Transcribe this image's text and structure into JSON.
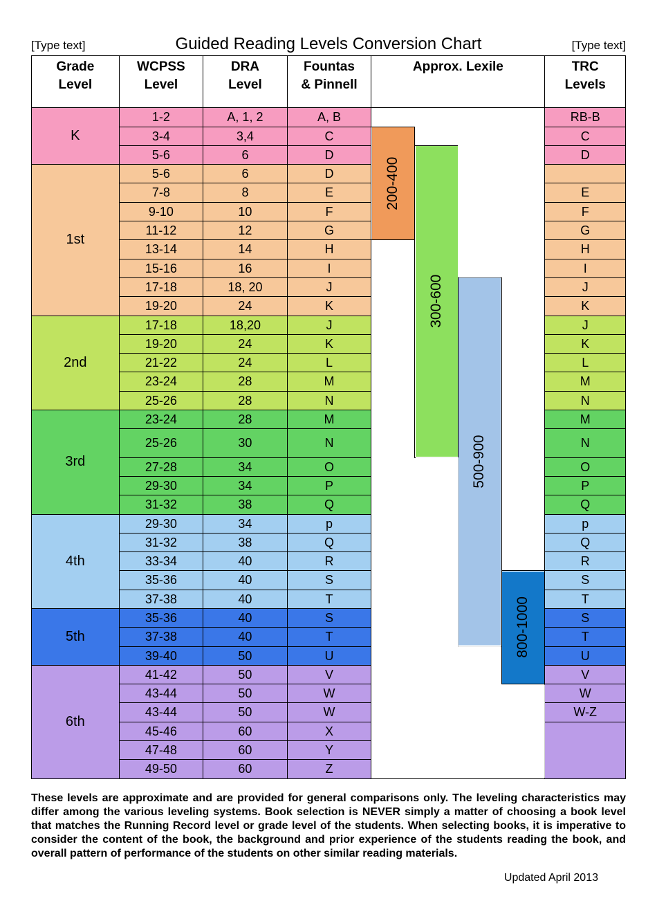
{
  "header": {
    "left": "[Type text]",
    "title": "Guided Reading Levels Conversion Chart",
    "right": "[Type text]"
  },
  "columns": [
    "Grade Level",
    "WCPSS Level",
    "DRA Level",
    "Fountas & Pinnell",
    "Approx. Lexile",
    "TRC Levels"
  ],
  "colors": {
    "k": "#f79cc0",
    "g1": "#f7c89a",
    "g2": "#c0e360",
    "g3": "#63d363",
    "g4": "#a3cff1",
    "g5": "#3a77e8",
    "g6": "#bb9ce8",
    "lex1": "#f09a5a",
    "lex2": "#8de05e",
    "lex3": "#a3c4e8",
    "lex4": "#1378c9",
    "white": "#ffffff"
  },
  "lexile": {
    "l1": "200-400",
    "l2": "300-600",
    "l3": "500-900",
    "l4": "800-1000"
  },
  "grades": {
    "k": "K",
    "g1": "1st",
    "g2": "2nd",
    "g3": "3rd",
    "g4": "4th",
    "g5": "5th",
    "g6": "6th"
  },
  "rows": [
    {
      "g": "k",
      "w": "1-2",
      "d": "A, 1, 2",
      "f": "A, B",
      "t": "RB-B"
    },
    {
      "g": "k",
      "w": "3-4",
      "d": "3,4",
      "f": "C",
      "t": "C"
    },
    {
      "g": "k",
      "w": "5-6",
      "d": "6",
      "f": "D",
      "t": "D"
    },
    {
      "g": "g1",
      "w": "5-6",
      "d": "6",
      "f": "D",
      "t": ""
    },
    {
      "g": "g1",
      "w": "7-8",
      "d": "8",
      "f": "E",
      "t": "E"
    },
    {
      "g": "g1",
      "w": "9-10",
      "d": "10",
      "f": "F",
      "t": "F"
    },
    {
      "g": "g1",
      "w": "11-12",
      "d": "12",
      "f": "G",
      "t": "G"
    },
    {
      "g": "g1",
      "w": "13-14",
      "d": "14",
      "f": "H",
      "t": "H"
    },
    {
      "g": "g1",
      "w": "15-16",
      "d": "16",
      "f": "I",
      "t": "I"
    },
    {
      "g": "g1",
      "w": "17-18",
      "d": "18, 20",
      "f": "J",
      "t": "J"
    },
    {
      "g": "g1",
      "w": "19-20",
      "d": "24",
      "f": "K",
      "t": "K"
    },
    {
      "g": "g2",
      "w": "17-18",
      "d": "18,20",
      "f": "J",
      "t": "J"
    },
    {
      "g": "g2",
      "w": "19-20",
      "d": "24",
      "f": "K",
      "t": "K"
    },
    {
      "g": "g2",
      "w": "21-22",
      "d": "24",
      "f": "L",
      "t": "L"
    },
    {
      "g": "g2",
      "w": "23-24",
      "d": "28",
      "f": "M",
      "t": "M"
    },
    {
      "g": "g2",
      "w": "25-26",
      "d": "28",
      "f": "N",
      "t": "N"
    },
    {
      "g": "g3",
      "w": "23-24",
      "d": "28",
      "f": "M",
      "t": "M"
    },
    {
      "g": "g3",
      "w": "25-26",
      "d": "30",
      "f": "N",
      "t": "N"
    },
    {
      "g": "g3",
      "w": "27-28",
      "d": "34",
      "f": "O",
      "t": "O"
    },
    {
      "g": "g3",
      "w": "29-30",
      "d": "34",
      "f": "P",
      "t": "P"
    },
    {
      "g": "g3",
      "w": "31-32",
      "d": "38",
      "f": "Q",
      "t": "Q"
    },
    {
      "g": "g4",
      "w": "29-30",
      "d": "34",
      "f": "p",
      "t": "p"
    },
    {
      "g": "g4",
      "w": "31-32",
      "d": "38",
      "f": "Q",
      "t": "Q"
    },
    {
      "g": "g4",
      "w": "33-34",
      "d": "40",
      "f": "R",
      "t": "R"
    },
    {
      "g": "g4",
      "w": "35-36",
      "d": "40",
      "f": "S",
      "t": "S"
    },
    {
      "g": "g4",
      "w": "37-38",
      "d": "40",
      "f": "T",
      "t": "T"
    },
    {
      "g": "g5",
      "w": "35-36",
      "d": "40",
      "f": "S",
      "t": "S"
    },
    {
      "g": "g5",
      "w": "37-38",
      "d": "40",
      "f": "T",
      "t": "T"
    },
    {
      "g": "g5",
      "w": "39-40",
      "d": "50",
      "f": "U",
      "t": "U"
    },
    {
      "g": "g6",
      "w": "41-42",
      "d": "50",
      "f": "V",
      "t": "V"
    },
    {
      "g": "g6",
      "w": "43-44",
      "d": "50",
      "f": "W",
      "t": "W"
    },
    {
      "g": "g6",
      "w": "43-44",
      "d": "50",
      "f": "W",
      "t": "W-Z"
    },
    {
      "g": "g6",
      "w": "45-46",
      "d": "60",
      "f": "X",
      "t": ""
    },
    {
      "g": "g6",
      "w": "47-48",
      "d": "60",
      "f": "Y",
      "t": ""
    },
    {
      "g": "g6",
      "w": "49-50",
      "d": "60",
      "f": "Z",
      "t": ""
    }
  ],
  "footnote": "These levels are approximate and are provided for general comparisons only. The leveling characteristics may differ among the various leveling systems. Book selection is NEVER simply a matter of choosing a book level that matches the Running Record level or grade level of the students. When selecting books, it is imperative to consider the content of the book, the background and prior experience of the students reading the book, and overall pattern of performance of the students on other similar reading materials.",
  "updated": "Updated April 2013"
}
